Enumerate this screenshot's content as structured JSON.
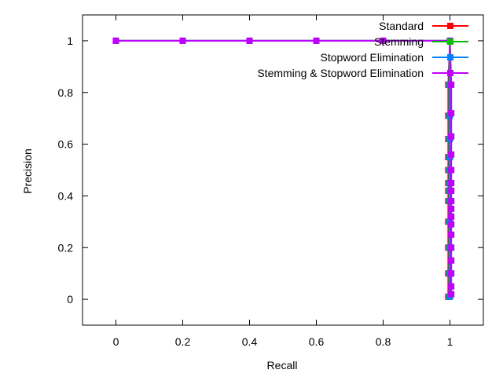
{
  "chart_data": {
    "type": "line",
    "xlabel": "Recall",
    "ylabel": "Precision",
    "xlim": [
      -0.1,
      1.1
    ],
    "ylim": [
      -0.1,
      1.1
    ],
    "xticks": [
      0,
      0.2,
      0.4,
      0.6,
      0.8,
      1
    ],
    "yticks": [
      0,
      0.2,
      0.4,
      0.6,
      0.8,
      1
    ],
    "grid": false,
    "legend_position": "top-right",
    "series": [
      {
        "name": "Standard",
        "color": "#ff0000",
        "x": [
          0,
          0.2,
          0.4,
          0.6,
          0.8,
          1,
          0.995,
          0.995,
          0.995,
          0.995,
          0.995,
          0.995,
          0.995,
          0.995,
          0.995,
          0.995,
          0.995,
          0.995
        ],
        "y": [
          1,
          1,
          1,
          1,
          1,
          1,
          0.83,
          0.71,
          0.62,
          0.55,
          0.5,
          0.45,
          0.42,
          0.38,
          0.3,
          0.2,
          0.1,
          0.01
        ]
      },
      {
        "name": "Stemming",
        "color": "#00c000",
        "x": [
          0,
          0.2,
          0.4,
          0.6,
          0.8,
          1,
          0.998,
          0.998,
          0.998,
          0.998,
          0.998,
          0.998,
          0.998,
          0.998,
          0.998,
          0.998,
          0.998,
          0.998
        ],
        "y": [
          1,
          1,
          1,
          1,
          1,
          1,
          0.83,
          0.71,
          0.62,
          0.55,
          0.5,
          0.45,
          0.42,
          0.38,
          0.3,
          0.2,
          0.1,
          0.01
        ]
      },
      {
        "name": "Stopword Elimination",
        "color": "#0080ff",
        "x": [
          0,
          0.2,
          0.4,
          0.6,
          0.8,
          1,
          1,
          1,
          1,
          1,
          1,
          1,
          1,
          1,
          1,
          1,
          1,
          1
        ],
        "y": [
          1,
          1,
          1,
          1,
          1,
          1,
          0.83,
          0.71,
          0.62,
          0.55,
          0.5,
          0.45,
          0.42,
          0.38,
          0.3,
          0.2,
          0.1,
          0.01
        ]
      },
      {
        "name": "Stemming & Stopword Elimination",
        "color": "#c000ff",
        "x": [
          0,
          0.2,
          0.4,
          0.6,
          0.8,
          1,
          1.004,
          1.004,
          1.004,
          1.004,
          1.004,
          1.004,
          1.004,
          1.004,
          1.004,
          1.004,
          1.004,
          1.004,
          1.004,
          1.004,
          1.004,
          1.004,
          1.004
        ],
        "y": [
          1,
          1,
          1,
          1,
          1,
          1,
          0.83,
          0.72,
          0.63,
          0.56,
          0.5,
          0.45,
          0.42,
          0.38,
          0.35,
          0.32,
          0.29,
          0.25,
          0.2,
          0.15,
          0.1,
          0.05,
          0.02
        ]
      }
    ]
  }
}
